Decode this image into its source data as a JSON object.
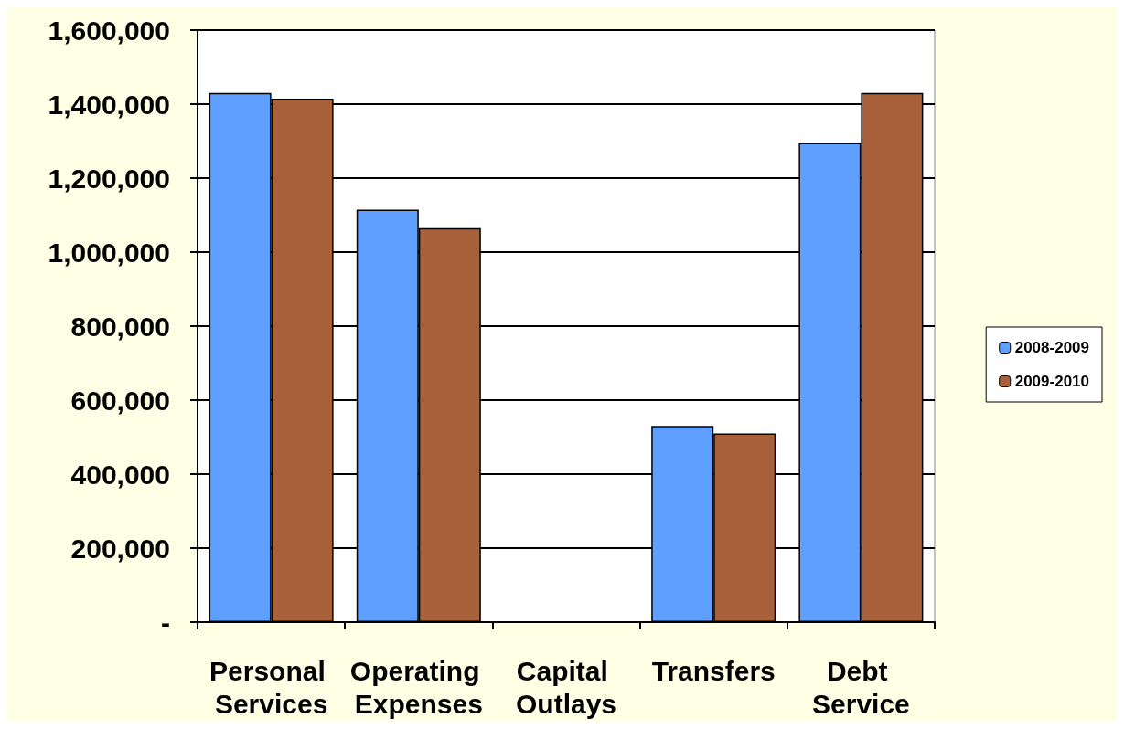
{
  "chart_data": {
    "type": "bar",
    "categories": [
      "Personal Services",
      "Operating Expenses",
      "Capital Outlays",
      "Transfers",
      "Debt Service"
    ],
    "series": [
      {
        "name": "2008-2009",
        "color": "#5f9fff",
        "values": [
          1430000,
          1115000,
          0,
          530000,
          1295000
        ]
      },
      {
        "name": "2009-2010",
        "color": "#a8603a",
        "values": [
          1415000,
          1065000,
          0,
          510000,
          1430000
        ]
      }
    ],
    "ylim": [
      0,
      1600000
    ],
    "yticks": [
      {
        "value": 0,
        "label": "-"
      },
      {
        "value": 200000,
        "label": "200,000"
      },
      {
        "value": 400000,
        "label": "400,000"
      },
      {
        "value": 600000,
        "label": "600,000"
      },
      {
        "value": 800000,
        "label": "800,000"
      },
      {
        "value": 1000000,
        "label": "1,000,000"
      },
      {
        "value": 1200000,
        "label": "1,200,000"
      },
      {
        "value": 1400000,
        "label": "1,400,000"
      },
      {
        "value": 1600000,
        "label": "1,600,000"
      }
    ],
    "grid": "y",
    "legend": "right"
  }
}
